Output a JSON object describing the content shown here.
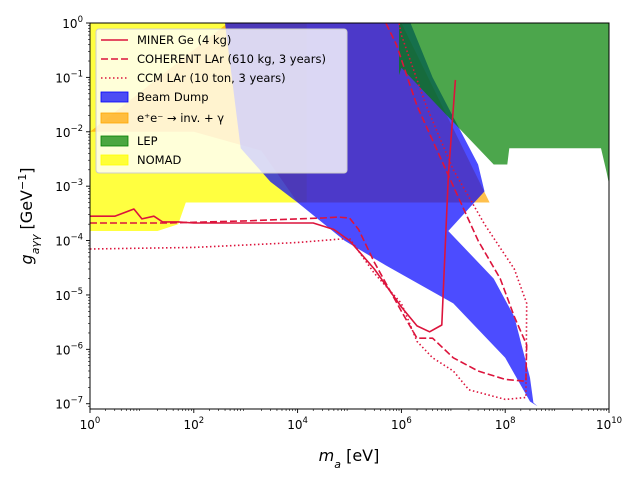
{
  "chart_data": {
    "type": "area",
    "xlabel": {
      "base": "m",
      "sub": "a",
      "unit": " [eV]"
    },
    "ylabel": {
      "base": "g",
      "sub": "aγγ",
      "unit_prefix": " [GeV",
      "unit_sup": "−1",
      "unit_suffix": "]"
    },
    "xscale": "log",
    "yscale": "log",
    "xlim": [
      1,
      10000000000
    ],
    "ylim": [
      8e-08,
      1
    ],
    "x_ticks": [
      {
        "value": 1,
        "base": "10",
        "exp": "0"
      },
      {
        "value": 100,
        "base": "10",
        "exp": "2"
      },
      {
        "value": 10000,
        "base": "10",
        "exp": "4"
      },
      {
        "value": 1000000,
        "base": "10",
        "exp": "6"
      },
      {
        "value": 100000000,
        "base": "10",
        "exp": "8"
      },
      {
        "value": 10000000000,
        "base": "10",
        "exp": "10"
      }
    ],
    "y_ticks": [
      {
        "value": 1e-07,
        "base": "10",
        "exp": "−7"
      },
      {
        "value": 1e-06,
        "base": "10",
        "exp": "−6"
      },
      {
        "value": 1e-05,
        "base": "10",
        "exp": "−5"
      },
      {
        "value": 0.0001,
        "base": "10",
        "exp": "−4"
      },
      {
        "value": 0.001,
        "base": "10",
        "exp": "−3"
      },
      {
        "value": 0.01,
        "base": "10",
        "exp": "−2"
      },
      {
        "value": 0.1,
        "base": "10",
        "exp": "−1"
      },
      {
        "value": 1,
        "base": "10",
        "exp": "0"
      }
    ],
    "grid": false,
    "legend_position": "top-left",
    "regions": [
      {
        "name": "NOMAD",
        "color": "#ffff00",
        "opacity": 0.75,
        "points": [
          [
            1,
            1
          ],
          [
            15000,
            1
          ],
          [
            15000,
            0.0005
          ],
          [
            70,
            0.0005
          ],
          [
            50,
            0.0002
          ],
          [
            20,
            0.00015
          ],
          [
            1,
            0.00015
          ]
        ]
      },
      {
        "name": "e⁺e⁻ → inv. + γ",
        "color": "#ffa500",
        "opacity": 0.7,
        "points": [
          [
            450,
            1
          ],
          [
            1000000,
            1
          ],
          [
            50000000,
            0.0005
          ],
          [
            10000,
            0.0005
          ],
          [
            2000,
            0.0045
          ],
          [
            100,
            0.01
          ],
          [
            1,
            0.01
          ]
        ]
      },
      {
        "name": "Beam Dump",
        "color": "#0000ff",
        "opacity": 0.7,
        "points": [
          [
            450000,
            1
          ],
          [
            1500000,
            1
          ],
          [
            4000000,
            0.1
          ],
          [
            30000000,
            0.0025
          ],
          [
            40000000,
            0.0008
          ],
          [
            8000000,
            0.00015
          ],
          [
            60000000,
            2e-05
          ],
          [
            150000000,
            4e-06
          ],
          [
            300000000,
            3e-07
          ],
          [
            350000000,
            1.05e-07
          ],
          [
            420000000,
            9e-08
          ],
          [
            300000000,
            1.1e-07
          ],
          [
            100000000,
            7e-07
          ],
          [
            10000000,
            7e-06
          ],
          [
            500000,
            3.5e-05
          ],
          [
            80000,
            0.0001
          ],
          [
            10000,
            0.0005
          ],
          [
            3000,
            0.0012
          ],
          [
            800,
            0.005
          ],
          [
            400,
            1
          ]
        ]
      },
      {
        "name": "LEP",
        "color": "#008000",
        "opacity": 0.7,
        "points": [
          [
            900000,
            1
          ],
          [
            10000000000,
            1
          ],
          [
            10000000000,
            0.0011
          ],
          [
            9000000000,
            0.0018
          ],
          [
            7000000000,
            0.005
          ],
          [
            120000000,
            0.005
          ],
          [
            110000000,
            0.0025
          ],
          [
            60000000,
            0.0025
          ],
          [
            1000000,
            0.15
          ],
          [
            900000,
            0.11
          ]
        ]
      }
    ],
    "series": [
      {
        "name": "MINER Ge (4 kg)",
        "color": "#dc143c",
        "style": "solid",
        "points": [
          [
            1,
            0.00028
          ],
          [
            3,
            0.00028
          ],
          [
            7,
            0.00038
          ],
          [
            10,
            0.00025
          ],
          [
            17,
            0.00028
          ],
          [
            25,
            0.00022
          ],
          [
            50,
            0.00022
          ],
          [
            100,
            0.00021
          ],
          [
            20000,
            0.00021
          ],
          [
            50000,
            0.00016
          ],
          [
            100000,
            0.0001
          ],
          [
            300000,
            3e-05
          ],
          [
            1000000,
            6e-06
          ],
          [
            2000000,
            2.7e-06
          ],
          [
            3500000,
            2.1e-06
          ],
          [
            6000000,
            2.8e-06
          ],
          [
            8000000,
            0.0015
          ],
          [
            11000000,
            0.09
          ]
        ]
      },
      {
        "name": "COHERENT LAr (610 kg, 3 years)",
        "color": "#dc143c",
        "style": "dashed",
        "points": [
          [
            1,
            0.00021
          ],
          [
            30,
            0.00021
          ],
          [
            1000,
            0.00023
          ],
          [
            30000,
            0.00026
          ],
          [
            60000,
            0.00027
          ],
          [
            100000,
            0.00026
          ],
          [
            150000,
            0.00016
          ],
          [
            300000,
            4e-05
          ],
          [
            1000000,
            5e-06
          ],
          [
            2000000,
            1.6e-06
          ],
          [
            4000000,
            1.6e-06
          ],
          [
            10000000,
            7e-07
          ],
          [
            30000000,
            4e-07
          ],
          [
            100000000,
            2.8e-07
          ],
          [
            250000000,
            2.6e-07
          ],
          [
            260000000,
            1.2e-06
          ],
          [
            150000000,
            4e-06
          ],
          [
            80000000,
            2e-05
          ],
          [
            30000000,
            0.0001
          ],
          [
            10000000,
            0.001
          ],
          [
            2000000,
            0.03
          ],
          [
            800000,
            0.4
          ],
          [
            500000,
            1
          ]
        ]
      },
      {
        "name": "CCM LAr (10 ton, 3 years)",
        "color": "#dc143c",
        "style": "dotted",
        "points": [
          [
            1,
            7e-05
          ],
          [
            100,
            7.5e-05
          ],
          [
            1000,
            8.3e-05
          ],
          [
            10000,
            9.2e-05
          ],
          [
            100000,
            0.00011
          ],
          [
            300000,
            2.5e-05
          ],
          [
            1000000,
            7e-06
          ],
          [
            2000000,
            1.4e-06
          ],
          [
            4000000,
            7e-07
          ],
          [
            10000000,
            4e-07
          ],
          [
            20000000,
            1.8e-07
          ],
          [
            100000000,
            1.2e-07
          ],
          [
            250000000,
            1.3e-07
          ],
          [
            260000000,
            7e-06
          ],
          [
            150000000,
            3e-05
          ],
          [
            40000000,
            0.0002
          ],
          [
            10000000,
            0.002
          ],
          [
            3000000,
            0.03
          ],
          [
            1000000,
            0.6
          ],
          [
            900000,
            1
          ]
        ]
      }
    ],
    "legend": [
      {
        "label": "MINER Ge (4 kg)",
        "kind": "line",
        "style": "solid",
        "color": "#dc143c"
      },
      {
        "label": "COHERENT LAr (610 kg, 3 years)",
        "kind": "line",
        "style": "dashed",
        "color": "#dc143c"
      },
      {
        "label": "CCM LAr (10 ton, 3 years)",
        "kind": "line",
        "style": "dotted",
        "color": "#dc143c"
      },
      {
        "label": "Beam Dump",
        "kind": "patch",
        "color": "#0000ff",
        "opacity": 0.7
      },
      {
        "label": "e⁺e⁻ → inv. + γ",
        "kind": "patch",
        "color": "#ffa500",
        "opacity": 0.7
      },
      {
        "label": "LEP",
        "kind": "patch",
        "color": "#008000",
        "opacity": 0.7
      },
      {
        "label": "NOMAD",
        "kind": "patch",
        "color": "#ffff00",
        "opacity": 0.75
      }
    ]
  }
}
